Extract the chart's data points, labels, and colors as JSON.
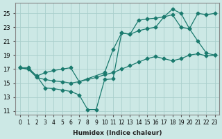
{
  "xlabel": "Humidex (Indice chaleur)",
  "xlim": [
    -0.5,
    23.5
  ],
  "ylim": [
    10.5,
    26.5
  ],
  "xticks": [
    0,
    1,
    2,
    3,
    4,
    5,
    6,
    7,
    8,
    9,
    10,
    11,
    12,
    13,
    14,
    15,
    16,
    17,
    18,
    19,
    20,
    21,
    22,
    23
  ],
  "yticks": [
    11,
    13,
    15,
    17,
    19,
    21,
    23,
    25
  ],
  "background_color": "#cce8e5",
  "grid_color": "#aacfcc",
  "line_color": "#1a7a6e",
  "line1_x": [
    0,
    1,
    2,
    3,
    4,
    5,
    6,
    7,
    8,
    9,
    10,
    11,
    12,
    13,
    14,
    15,
    16,
    17,
    18,
    19,
    20,
    21,
    22,
    23
  ],
  "line1_y": [
    17.2,
    17.2,
    16.0,
    14.3,
    14.2,
    14.0,
    13.8,
    13.3,
    11.2,
    11.2,
    15.5,
    15.6,
    22.2,
    22.0,
    24.0,
    24.2,
    24.3,
    24.5,
    25.6,
    25.0,
    22.8,
    21.0,
    19.3,
    19.0
  ],
  "line2_x": [
    0,
    1,
    2,
    3,
    4,
    5,
    6,
    7,
    10,
    11,
    12,
    13,
    14,
    15,
    16,
    17,
    18,
    19,
    20,
    21,
    22,
    23
  ],
  "line2_y": [
    17.2,
    17.0,
    16.0,
    16.5,
    16.8,
    17.0,
    17.2,
    15.2,
    16.5,
    19.8,
    22.2,
    22.0,
    22.5,
    22.8,
    23.0,
    24.5,
    24.8,
    23.0,
    22.8,
    25.0,
    24.8,
    25.0
  ],
  "line3_x": [
    0,
    1,
    2,
    3,
    4,
    5,
    6,
    7,
    8,
    9,
    10,
    11,
    12,
    13,
    14,
    15,
    16,
    17,
    18,
    19,
    20,
    21,
    22,
    23
  ],
  "line3_y": [
    17.2,
    17.0,
    15.8,
    15.5,
    15.3,
    15.2,
    15.0,
    15.2,
    15.5,
    15.8,
    16.2,
    16.5,
    17.0,
    17.5,
    18.0,
    18.5,
    18.8,
    18.5,
    18.2,
    18.5,
    19.0,
    19.2,
    18.9,
    19.0
  ]
}
